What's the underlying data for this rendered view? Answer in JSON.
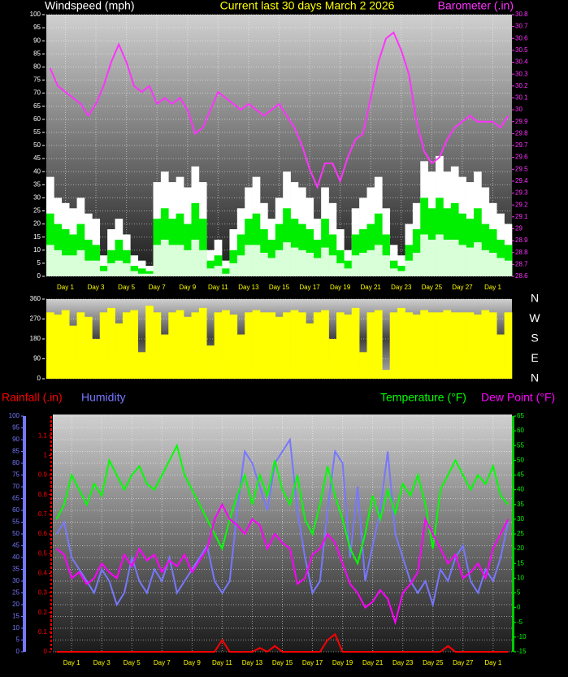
{
  "chart_data": [
    {
      "type": "combo",
      "title": "Current last 30 days March 2 2026",
      "y_label": "Windspeed (mph)",
      "y2_label": "Barometer (.in)",
      "grid": true,
      "categories": [
        null,
        null,
        "Day 1",
        null,
        null,
        null,
        "Day 3",
        null,
        null,
        null,
        "Day 5",
        null,
        null,
        null,
        "Day 7",
        null,
        null,
        null,
        "Day 9",
        null,
        null,
        null,
        "Day 11",
        null,
        null,
        null,
        "Day 13",
        null,
        null,
        null,
        "Day 15",
        null,
        null,
        null,
        "Day 17",
        null,
        null,
        null,
        "Day 19",
        null,
        null,
        null,
        "Day 21",
        null,
        null,
        null,
        "Day 23",
        null,
        null,
        null,
        "Day 25",
        null,
        null,
        null,
        "Day 27",
        null,
        null,
        null,
        "Day 1",
        null,
        null
      ],
      "ylim": [
        0,
        100
      ],
      "yticks": [
        0,
        5,
        10,
        15,
        20,
        25,
        30,
        35,
        40,
        45,
        50,
        55,
        60,
        65,
        70,
        75,
        80,
        85,
        90,
        95,
        100
      ],
      "y2lim": [
        28.6,
        30.8
      ],
      "y2ticks": [
        28.6,
        28.7,
        28.8,
        28.9,
        29,
        29.1,
        29.2,
        29.3,
        29.4,
        29.5,
        29.6,
        29.7,
        29.8,
        29.9,
        30,
        30.1,
        30.2,
        30.3,
        30.4,
        30.5,
        30.6,
        30.7,
        30.8
      ],
      "series": [
        {
          "kind": "bar",
          "color": "#ffffff",
          "values": [
            38,
            30,
            28,
            26,
            30,
            24,
            22,
            8,
            18,
            22,
            16,
            8,
            6,
            4,
            36,
            40,
            36,
            38,
            34,
            42,
            36,
            10,
            14,
            6,
            18,
            26,
            34,
            38,
            28,
            22,
            30,
            40,
            36,
            34,
            30,
            22,
            34,
            28,
            18,
            10,
            26,
            30,
            34,
            38,
            26,
            12,
            8,
            20,
            28,
            44,
            40,
            46,
            40,
            42,
            38,
            36,
            40,
            34,
            28,
            24,
            20
          ]
        },
        {
          "kind": "bar",
          "color": "#00ee00",
          "values": [
            24,
            20,
            18,
            16,
            20,
            14,
            12,
            4,
            10,
            14,
            10,
            4,
            3,
            2,
            22,
            26,
            22,
            24,
            20,
            28,
            22,
            6,
            8,
            3,
            10,
            16,
            22,
            24,
            18,
            14,
            20,
            26,
            22,
            20,
            18,
            14,
            22,
            16,
            10,
            6,
            16,
            18,
            20,
            24,
            16,
            6,
            4,
            12,
            18,
            30,
            26,
            30,
            26,
            28,
            24,
            22,
            26,
            20,
            18,
            14,
            12
          ]
        },
        {
          "kind": "bar",
          "color": "#d8ffd8",
          "values": [
            12,
            10,
            8,
            8,
            10,
            6,
            6,
            2,
            5,
            6,
            5,
            2,
            1,
            1,
            12,
            14,
            12,
            12,
            10,
            14,
            10,
            3,
            4,
            1,
            5,
            8,
            12,
            12,
            9,
            7,
            10,
            13,
            11,
            10,
            9,
            7,
            11,
            8,
            5,
            3,
            8,
            9,
            10,
            12,
            8,
            3,
            2,
            6,
            9,
            16,
            14,
            16,
            14,
            14,
            12,
            11,
            13,
            10,
            9,
            7,
            6
          ]
        },
        {
          "name": "Barometer (.in)",
          "kind": "line",
          "axis": "y2",
          "color": "#ff33ff",
          "values": [
            30.35,
            30.2,
            30.15,
            30.1,
            30.05,
            29.95,
            30.05,
            30.2,
            30.4,
            30.55,
            30.4,
            30.2,
            30.15,
            30.2,
            30.05,
            30.1,
            30.05,
            30.1,
            30,
            29.8,
            29.85,
            30,
            30.15,
            30.1,
            30.05,
            30,
            30.05,
            30,
            29.95,
            30,
            30.05,
            29.95,
            29.85,
            29.7,
            29.5,
            29.35,
            29.55,
            29.55,
            29.4,
            29.6,
            29.75,
            29.8,
            30.1,
            30.4,
            30.6,
            30.65,
            30.5,
            30.3,
            29.9,
            29.65,
            29.55,
            29.6,
            29.75,
            29.85,
            29.9,
            29.95,
            29.9,
            29.9,
            29.9,
            29.85,
            29.95
          ]
        }
      ]
    },
    {
      "type": "bar",
      "grid": true,
      "ylim": [
        0,
        360
      ],
      "yticks": [
        0,
        90,
        180,
        270,
        360
      ],
      "direction_labels": [
        "N",
        "W",
        "S",
        "E",
        "N"
      ],
      "series": [
        {
          "kind": "bar",
          "color": "#ffff00",
          "values": [
            300,
            290,
            310,
            240,
            300,
            280,
            180,
            300,
            320,
            250,
            300,
            310,
            120,
            330,
            300,
            200,
            300,
            310,
            280,
            300,
            320,
            150,
            300,
            310,
            290,
            200,
            300,
            310,
            300,
            300,
            280,
            300,
            310,
            300,
            250,
            300,
            310,
            180,
            300,
            290,
            320,
            120,
            300,
            310,
            40,
            300,
            320,
            300,
            290,
            310,
            300,
            300,
            310,
            300,
            300,
            300,
            290,
            310,
            300,
            200,
            300
          ]
        }
      ]
    },
    {
      "type": "combo",
      "grid": true,
      "categories": [
        null,
        null,
        "Day 1",
        null,
        null,
        null,
        "Day 3",
        null,
        null,
        null,
        "Day 5",
        null,
        null,
        null,
        "Day 7",
        null,
        null,
        null,
        "Day 9",
        null,
        null,
        null,
        "Day 11",
        null,
        null,
        null,
        "Day 13",
        null,
        null,
        null,
        "Day 15",
        null,
        null,
        null,
        "Day 17",
        null,
        null,
        null,
        "Day 19",
        null,
        null,
        null,
        "Day 21",
        null,
        null,
        null,
        "Day 23",
        null,
        null,
        null,
        "Day 25",
        null,
        null,
        null,
        "Day 27",
        null,
        null,
        null,
        "Day 1",
        null,
        null
      ],
      "ylim": [
        0,
        100
      ],
      "yticks": [
        0,
        5,
        10,
        15,
        20,
        25,
        30,
        35,
        40,
        45,
        50,
        55,
        60,
        65,
        70,
        75,
        80,
        85,
        90,
        95,
        100
      ],
      "y2lim": [
        -15,
        65
      ],
      "y2ticks": [
        -15,
        -10,
        -5,
        0,
        5,
        10,
        15,
        20,
        25,
        30,
        35,
        40,
        45,
        50,
        55,
        60,
        65
      ],
      "y3lim": [
        0,
        1.2
      ],
      "y3ticks": [
        0,
        0.1,
        0.2,
        0.3,
        0.4,
        0.5,
        0.6,
        0.7,
        0.8,
        0.9,
        1,
        1.1
      ],
      "series": [
        {
          "name": "Rainfall (.in)",
          "kind": "line",
          "axis": "y3",
          "color": "#ff0000",
          "values": [
            0,
            0,
            0,
            0,
            0,
            0,
            0,
            0,
            0,
            0,
            0,
            0,
            0,
            0,
            0,
            0,
            0,
            0,
            0,
            0,
            0,
            0,
            0.06,
            0,
            0,
            0,
            0,
            0.02,
            0,
            0.03,
            0,
            0,
            0,
            0,
            0,
            0,
            0.06,
            0.09,
            0,
            0,
            0,
            0,
            0,
            0,
            0,
            0,
            0,
            0,
            0,
            0,
            0,
            0,
            0.03,
            0,
            0,
            0,
            0,
            0,
            0,
            0,
            0
          ]
        },
        {
          "name": "Humidity",
          "kind": "line",
          "axis": "y",
          "color": "#7777ff",
          "values": [
            50,
            55,
            40,
            35,
            30,
            25,
            35,
            30,
            20,
            25,
            40,
            30,
            25,
            35,
            30,
            40,
            25,
            30,
            35,
            40,
            45,
            30,
            25,
            30,
            60,
            85,
            80,
            70,
            60,
            80,
            85,
            90,
            60,
            40,
            25,
            30,
            60,
            85,
            80,
            40,
            70,
            30,
            45,
            60,
            85,
            50,
            40,
            30,
            25,
            30,
            20,
            35,
            30,
            40,
            45,
            30,
            25,
            35,
            30,
            40,
            55
          ]
        },
        {
          "name": "Temperature (°F)",
          "kind": "line",
          "axis": "y2",
          "color": "#00ff00",
          "values": [
            30,
            35,
            45,
            40,
            35,
            42,
            38,
            50,
            45,
            40,
            45,
            48,
            42,
            40,
            45,
            50,
            55,
            45,
            40,
            35,
            30,
            25,
            20,
            30,
            38,
            45,
            35,
            45,
            38,
            50,
            40,
            35,
            45,
            30,
            25,
            35,
            48,
            38,
            30,
            20,
            15,
            25,
            38,
            30,
            40,
            32,
            42,
            38,
            45,
            35,
            20,
            40,
            45,
            50,
            45,
            40,
            45,
            42,
            48,
            38,
            35
          ]
        },
        {
          "name": "Dew Point (°F)",
          "kind": "line",
          "axis": "y2",
          "color": "#ff00ff",
          "values": [
            20,
            18,
            10,
            12,
            8,
            10,
            15,
            12,
            10,
            18,
            14,
            20,
            16,
            18,
            12,
            16,
            14,
            18,
            12,
            16,
            20,
            30,
            35,
            30,
            28,
            25,
            30,
            28,
            20,
            25,
            22,
            20,
            8,
            10,
            18,
            20,
            25,
            22,
            15,
            8,
            5,
            0,
            2,
            6,
            3,
            -5,
            5,
            8,
            12,
            30,
            25,
            20,
            15,
            18,
            10,
            12,
            15,
            10,
            20,
            25,
            30
          ]
        }
      ]
    }
  ]
}
